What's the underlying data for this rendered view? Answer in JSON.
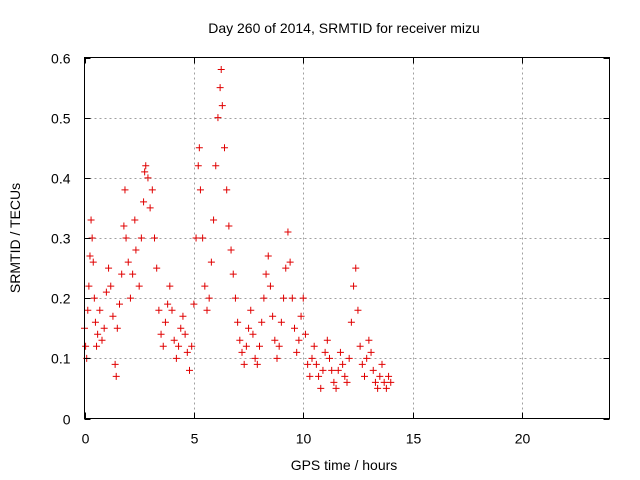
{
  "chart_data": {
    "type": "scatter",
    "title": "Day 260 of 2014, SRMTID for receiver mizu",
    "xlabel": "GPS time / hours",
    "ylabel": "SRMTID / TECUs",
    "xlim": [
      0,
      24
    ],
    "ylim": [
      0,
      0.6
    ],
    "xticks": [
      0,
      5,
      10,
      15,
      20
    ],
    "yticks": [
      0,
      0.1,
      0.2,
      0.3,
      0.4,
      0.5,
      0.6
    ],
    "xtick_labels": [
      "0",
      "5",
      "10",
      "15",
      "20"
    ],
    "ytick_labels": [
      "0",
      "0.1",
      "0.2",
      "0.3",
      "0.4",
      "0.5",
      "0.6"
    ],
    "grid": true,
    "marker": "+",
    "marker_color": "#e00000",
    "series": [
      {
        "name": "SRMTID",
        "points": [
          [
            0.0,
            0.15
          ],
          [
            0.05,
            0.12
          ],
          [
            0.1,
            0.1
          ],
          [
            0.15,
            0.18
          ],
          [
            0.2,
            0.22
          ],
          [
            0.25,
            0.27
          ],
          [
            0.3,
            0.33
          ],
          [
            0.35,
            0.3
          ],
          [
            0.4,
            0.26
          ],
          [
            0.45,
            0.2
          ],
          [
            0.5,
            0.16
          ],
          [
            0.55,
            0.12
          ],
          [
            0.6,
            0.14
          ],
          [
            0.7,
            0.18
          ],
          [
            0.8,
            0.13
          ],
          [
            0.9,
            0.15
          ],
          [
            1.0,
            0.21
          ],
          [
            1.1,
            0.25
          ],
          [
            1.2,
            0.22
          ],
          [
            1.3,
            0.17
          ],
          [
            1.4,
            0.09
          ],
          [
            1.45,
            0.07
          ],
          [
            1.5,
            0.15
          ],
          [
            1.6,
            0.19
          ],
          [
            1.7,
            0.24
          ],
          [
            1.8,
            0.32
          ],
          [
            1.85,
            0.38
          ],
          [
            1.9,
            0.3
          ],
          [
            2.0,
            0.26
          ],
          [
            2.1,
            0.2
          ],
          [
            2.2,
            0.24
          ],
          [
            2.3,
            0.33
          ],
          [
            2.35,
            0.28
          ],
          [
            2.5,
            0.22
          ],
          [
            2.6,
            0.3
          ],
          [
            2.7,
            0.36
          ],
          [
            2.75,
            0.41
          ],
          [
            2.8,
            0.42
          ],
          [
            2.9,
            0.4
          ],
          [
            3.0,
            0.35
          ],
          [
            3.1,
            0.38
          ],
          [
            3.2,
            0.3
          ],
          [
            3.3,
            0.25
          ],
          [
            3.4,
            0.18
          ],
          [
            3.5,
            0.14
          ],
          [
            3.6,
            0.12
          ],
          [
            3.7,
            0.16
          ],
          [
            3.8,
            0.19
          ],
          [
            3.9,
            0.22
          ],
          [
            4.0,
            0.18
          ],
          [
            4.1,
            0.13
          ],
          [
            4.2,
            0.1
          ],
          [
            4.3,
            0.12
          ],
          [
            4.4,
            0.15
          ],
          [
            4.5,
            0.17
          ],
          [
            4.6,
            0.14
          ],
          [
            4.7,
            0.11
          ],
          [
            4.8,
            0.08
          ],
          [
            4.9,
            0.12
          ],
          [
            5.0,
            0.19
          ],
          [
            5.1,
            0.3
          ],
          [
            5.2,
            0.42
          ],
          [
            5.25,
            0.45
          ],
          [
            5.3,
            0.38
          ],
          [
            5.4,
            0.3
          ],
          [
            5.5,
            0.22
          ],
          [
            5.6,
            0.18
          ],
          [
            5.7,
            0.2
          ],
          [
            5.8,
            0.26
          ],
          [
            5.9,
            0.33
          ],
          [
            6.0,
            0.42
          ],
          [
            6.1,
            0.5
          ],
          [
            6.2,
            0.55
          ],
          [
            6.25,
            0.58
          ],
          [
            6.3,
            0.52
          ],
          [
            6.4,
            0.45
          ],
          [
            6.5,
            0.38
          ],
          [
            6.6,
            0.32
          ],
          [
            6.7,
            0.28
          ],
          [
            6.8,
            0.24
          ],
          [
            6.9,
            0.2
          ],
          [
            7.0,
            0.16
          ],
          [
            7.1,
            0.13
          ],
          [
            7.2,
            0.11
          ],
          [
            7.3,
            0.09
          ],
          [
            7.4,
            0.12
          ],
          [
            7.5,
            0.15
          ],
          [
            7.6,
            0.18
          ],
          [
            7.7,
            0.14
          ],
          [
            7.8,
            0.1
          ],
          [
            7.9,
            0.09
          ],
          [
            8.0,
            0.12
          ],
          [
            8.1,
            0.16
          ],
          [
            8.2,
            0.2
          ],
          [
            8.3,
            0.24
          ],
          [
            8.4,
            0.27
          ],
          [
            8.5,
            0.22
          ],
          [
            8.6,
            0.17
          ],
          [
            8.7,
            0.13
          ],
          [
            8.8,
            0.1
          ],
          [
            8.9,
            0.12
          ],
          [
            9.0,
            0.16
          ],
          [
            9.1,
            0.2
          ],
          [
            9.2,
            0.25
          ],
          [
            9.3,
            0.31
          ],
          [
            9.4,
            0.26
          ],
          [
            9.5,
            0.2
          ],
          [
            9.6,
            0.15
          ],
          [
            9.7,
            0.11
          ],
          [
            9.8,
            0.13
          ],
          [
            9.9,
            0.17
          ],
          [
            10.0,
            0.2
          ],
          [
            10.1,
            0.14
          ],
          [
            10.2,
            0.09
          ],
          [
            10.3,
            0.07
          ],
          [
            10.4,
            0.1
          ],
          [
            10.5,
            0.12
          ],
          [
            10.6,
            0.09
          ],
          [
            10.7,
            0.07
          ],
          [
            10.8,
            0.05
          ],
          [
            10.9,
            0.08
          ],
          [
            11.0,
            0.11
          ],
          [
            11.1,
            0.13
          ],
          [
            11.2,
            0.1
          ],
          [
            11.3,
            0.08
          ],
          [
            11.4,
            0.06
          ],
          [
            11.5,
            0.05
          ],
          [
            11.6,
            0.08
          ],
          [
            11.7,
            0.11
          ],
          [
            11.8,
            0.09
          ],
          [
            11.9,
            0.07
          ],
          [
            12.0,
            0.06
          ],
          [
            12.1,
            0.1
          ],
          [
            12.2,
            0.16
          ],
          [
            12.3,
            0.22
          ],
          [
            12.4,
            0.25
          ],
          [
            12.5,
            0.18
          ],
          [
            12.6,
            0.12
          ],
          [
            12.7,
            0.09
          ],
          [
            12.8,
            0.07
          ],
          [
            12.9,
            0.1
          ],
          [
            13.0,
            0.13
          ],
          [
            13.1,
            0.11
          ],
          [
            13.2,
            0.08
          ],
          [
            13.3,
            0.06
          ],
          [
            13.4,
            0.05
          ],
          [
            13.5,
            0.07
          ],
          [
            13.6,
            0.09
          ],
          [
            13.7,
            0.06
          ],
          [
            13.8,
            0.05
          ],
          [
            13.9,
            0.07
          ],
          [
            14.0,
            0.06
          ]
        ]
      }
    ]
  }
}
